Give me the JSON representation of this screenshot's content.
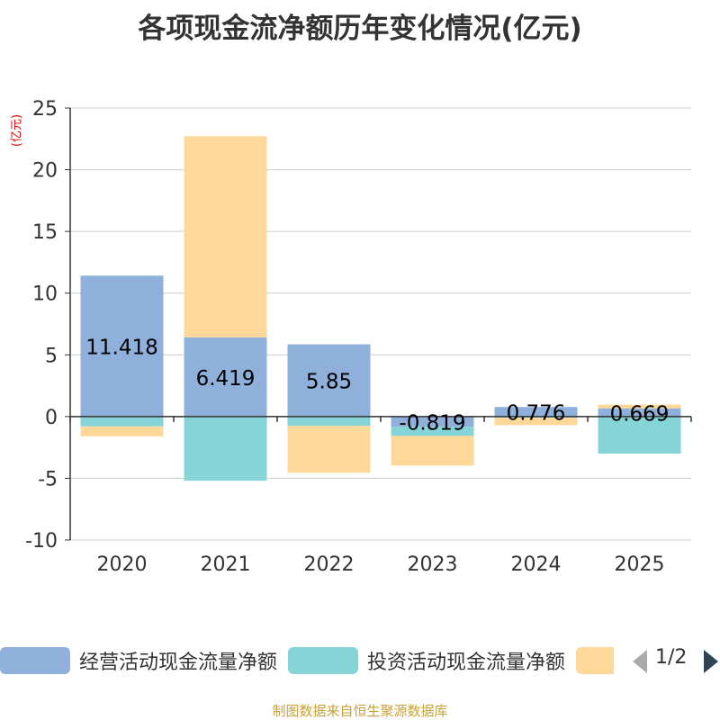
{
  "chart_data": {
    "type": "bar",
    "stacked": true,
    "title": "各项现金流净额历年变化情况(亿元)",
    "ylabel": "(亿元)",
    "ylim": [
      -10,
      25
    ],
    "yticks": [
      25,
      20,
      15,
      10,
      5,
      0,
      -5,
      -10
    ],
    "categories": [
      "2020",
      "2021",
      "2022",
      "2023",
      "2024",
      "2025"
    ],
    "series": [
      {
        "name": "经营活动现金流量净额",
        "color": "#8eb0da",
        "values": [
          11.418,
          6.419,
          5.85,
          -0.819,
          0.776,
          0.669
        ]
      },
      {
        "name": "投资活动现金流量净额",
        "color": "#85d5d8",
        "values": [
          -0.8,
          -5.2,
          -0.75,
          -0.75,
          -0.1,
          -3.0
        ]
      },
      {
        "name": "",
        "color": "#fed898",
        "values": [
          -0.8,
          16.3,
          -3.8,
          -2.4,
          -0.6,
          0.3
        ]
      }
    ],
    "data_labels": [
      "11.418",
      "6.419",
      "5.85",
      "-0.819",
      "0.776",
      "0.669"
    ],
    "grid": true,
    "legend_position": "bottom"
  },
  "legend": {
    "items": [
      {
        "label": "经营活动现金流量净额",
        "color": "#8eb0da"
      },
      {
        "label": "投资活动现金流量净额",
        "color": "#85d5d8"
      },
      {
        "label": "",
        "color": "#fed898"
      }
    ],
    "page": "1/2"
  },
  "source": "制图数据来自恒生聚源数据库"
}
